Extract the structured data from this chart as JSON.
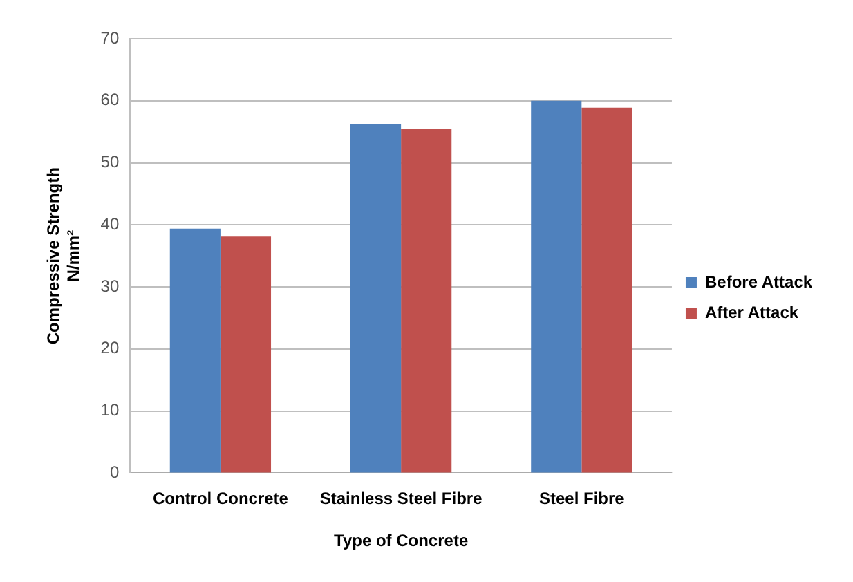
{
  "chart_data": {
    "type": "bar",
    "xlabel": "Type of Concrete",
    "ylabel": "Compressive Strength N/mm²",
    "categories": [
      "Control Concrete",
      "Stainless Steel Fibre",
      "Steel Fibre"
    ],
    "series": [
      {
        "name": "Before Attack",
        "color": "#4f81bd",
        "values": [
          39.4,
          56.2,
          60.0
        ]
      },
      {
        "name": "After Attack",
        "color": "#c0504d",
        "values": [
          38.1,
          55.5,
          58.9
        ]
      }
    ],
    "ylim": [
      0,
      70
    ],
    "yticks": [
      0,
      10,
      20,
      30,
      40,
      50,
      60,
      70
    ],
    "grid": "y",
    "legend": "right"
  }
}
